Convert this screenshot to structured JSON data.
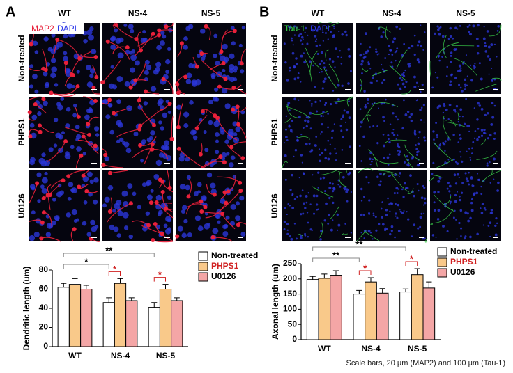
{
  "panels": [
    {
      "letter": "A",
      "columns": [
        "WT",
        "NS-4",
        "NS-5"
      ],
      "rows": [
        "Non-treated",
        "PHPS1",
        "U0126"
      ],
      "stains": [
        "MAP2",
        "DAPI"
      ]
    },
    {
      "letter": "B",
      "columns": [
        "WT",
        "NS-4",
        "NS-5"
      ],
      "rows": [
        "Non-treated",
        "PHPS1",
        "U0126"
      ],
      "stains": [
        "Tau-1",
        "DAPI"
      ]
    }
  ],
  "chart_data": [
    {
      "type": "bar",
      "y_label": "Dendritic length (um)",
      "categories": [
        "WT",
        "NS-4",
        "NS-5"
      ],
      "series": [
        {
          "name": "Non-treated",
          "color": "#ffffff",
          "values": [
            62,
            46,
            41
          ],
          "errors": [
            4,
            5,
            5
          ]
        },
        {
          "name": "PHPS1",
          "color": "#f9c98a",
          "values": [
            65,
            66,
            60
          ],
          "errors": [
            6,
            5,
            5
          ]
        },
        {
          "name": "U0126",
          "color": "#f4a6a6",
          "values": [
            60,
            48,
            48
          ],
          "errors": [
            4,
            3,
            3
          ]
        }
      ],
      "ylim": [
        0,
        80
      ],
      "yticks": [
        0,
        20,
        40,
        60,
        80
      ],
      "annotations": [
        "*",
        "**",
        "*",
        "*"
      ]
    },
    {
      "type": "bar",
      "y_label": "Axonal length (um)",
      "categories": [
        "WT",
        "NS-4",
        "NS-5"
      ],
      "series": [
        {
          "name": "Non-treated",
          "color": "#ffffff",
          "values": [
            198,
            150,
            157
          ],
          "errors": [
            10,
            12,
            10
          ]
        },
        {
          "name": "PHPS1",
          "color": "#f9c98a",
          "values": [
            202,
            190,
            214
          ],
          "errors": [
            14,
            14,
            20
          ]
        },
        {
          "name": "U0126",
          "color": "#f4a6a6",
          "values": [
            212,
            153,
            170
          ],
          "errors": [
            15,
            15,
            20
          ]
        }
      ],
      "ylim": [
        0,
        250
      ],
      "yticks": [
        0,
        50,
        100,
        150,
        200,
        250
      ],
      "annotations": [
        "**",
        "**",
        "*",
        "*"
      ]
    }
  ],
  "footnote": "Scale bars, 20 μm (MAP2) and 100 μm (Tau-1)"
}
